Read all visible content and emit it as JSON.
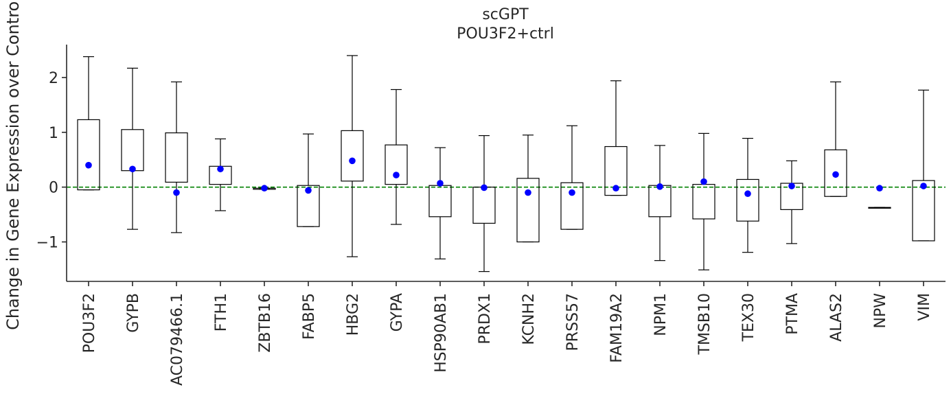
{
  "chart_data": {
    "type": "box",
    "title": "scGPT",
    "subtitle": "POU3F2+ctrl",
    "xlabel": "",
    "ylabel": "Change in Gene Expression over Control",
    "ylim": [
      -1.72,
      2.6
    ],
    "yticks": [
      -1,
      0,
      1,
      2
    ],
    "ytick_labels": [
      "−1",
      "0",
      "1",
      "2"
    ],
    "reference_line": {
      "y": 0,
      "style": "dashed",
      "color": "#008000"
    },
    "colors": {
      "box": "#000000",
      "mean_marker": "#0000ff",
      "axis": "#262626"
    },
    "grid": false,
    "categories": [
      "POU3F2",
      "GYPB",
      "AC079466.1",
      "FTH1",
      "ZBTB16",
      "FABP5",
      "HBG2",
      "GYPA",
      "HSP90AB1",
      "PRDX1",
      "KCNH2",
      "PRSS57",
      "FAM19A2",
      "NPM1",
      "TMSB10",
      "TEX30",
      "PTMA",
      "ALAS2",
      "NPW",
      "VIM"
    ],
    "boxes": [
      {
        "whislo": -0.05,
        "q1": -0.05,
        "q3": 1.23,
        "whishi": 2.38,
        "mean": 0.4
      },
      {
        "whislo": -0.77,
        "q1": 0.3,
        "q3": 1.05,
        "whishi": 2.17,
        "mean": 0.33
      },
      {
        "whislo": -0.83,
        "q1": 0.09,
        "q3": 0.99,
        "whishi": 1.92,
        "mean": -0.1
      },
      {
        "whislo": -0.43,
        "q1": 0.05,
        "q3": 0.38,
        "whishi": 0.88,
        "mean": 0.33
      },
      {
        "whislo": -0.04,
        "q1": -0.04,
        "q3": -0.02,
        "whishi": -0.02,
        "mean": -0.02
      },
      {
        "whislo": -0.72,
        "q1": -0.72,
        "q3": 0.03,
        "whishi": 0.97,
        "mean": -0.06
      },
      {
        "whislo": -1.27,
        "q1": 0.11,
        "q3": 1.03,
        "whishi": 2.4,
        "mean": 0.48
      },
      {
        "whislo": -0.68,
        "q1": 0.05,
        "q3": 0.77,
        "whishi": 1.78,
        "mean": 0.22
      },
      {
        "whislo": -1.31,
        "q1": -0.54,
        "q3": 0.03,
        "whishi": 0.72,
        "mean": 0.07
      },
      {
        "whislo": -1.54,
        "q1": -0.66,
        "q3": 0.0,
        "whishi": 0.94,
        "mean": -0.01
      },
      {
        "whislo": -1.0,
        "q1": -1.0,
        "q3": 0.16,
        "whishi": 0.95,
        "mean": -0.1
      },
      {
        "whislo": -0.77,
        "q1": -0.77,
        "q3": 0.08,
        "whishi": 1.12,
        "mean": -0.1
      },
      {
        "whislo": -0.15,
        "q1": -0.15,
        "q3": 0.74,
        "whishi": 1.94,
        "mean": -0.02
      },
      {
        "whislo": -1.34,
        "q1": -0.54,
        "q3": 0.03,
        "whishi": 0.76,
        "mean": 0.01
      },
      {
        "whislo": -1.51,
        "q1": -0.58,
        "q3": 0.05,
        "whishi": 0.98,
        "mean": 0.1
      },
      {
        "whislo": -1.19,
        "q1": -0.62,
        "q3": 0.14,
        "whishi": 0.89,
        "mean": -0.12
      },
      {
        "whislo": -1.03,
        "q1": -0.41,
        "q3": 0.07,
        "whishi": 0.48,
        "mean": 0.02
      },
      {
        "whislo": -0.17,
        "q1": -0.17,
        "q3": 0.68,
        "whishi": 1.92,
        "mean": 0.23
      },
      {
        "whislo": -0.37,
        "q1": -0.37,
        "q3": -0.37,
        "whishi": -0.37,
        "mean": -0.02
      },
      {
        "whislo": -0.98,
        "q1": -0.98,
        "q3": 0.12,
        "whishi": 1.77,
        "mean": 0.02
      }
    ]
  }
}
